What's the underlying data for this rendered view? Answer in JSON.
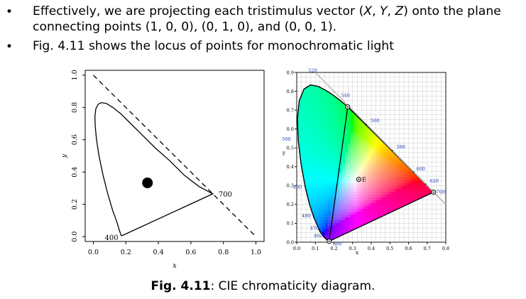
{
  "bullets": [
    {
      "marker": "•",
      "parts": [
        {
          "t": "Effectively, we are projecting each tristimulus vector ("
        },
        {
          "t": "X",
          "i": true
        },
        {
          "t": ", "
        },
        {
          "t": "Y",
          "i": true
        },
        {
          "t": ", "
        },
        {
          "t": "Z",
          "i": true
        },
        {
          "t": ") onto the plane connecting points (1, 0, 0), (0, 1, 0), and (0, 0, 1)."
        }
      ]
    },
    {
      "marker": "•",
      "parts": [
        {
          "t": "Fig. 4.11 shows the locus of points for monochromatic light"
        }
      ]
    }
  ],
  "caption": {
    "label": "Fig. 4.11",
    "text": ": CIE chromaticity diagram."
  },
  "chart_data": [
    {
      "type": "line",
      "title": "",
      "xlabel": "x",
      "ylabel": "y",
      "xlim": [
        -0.05,
        1.05
      ],
      "ylim": [
        -0.03,
        1.03
      ],
      "x_ticks": [
        "0.0",
        "0.2",
        "0.4",
        "0.6",
        "0.8",
        "1.0"
      ],
      "y_ticks": [
        "0.0",
        "0.2",
        "0.4",
        "0.6",
        "0.8",
        "1.0"
      ],
      "grid": false,
      "series": [
        {
          "style": "solid",
          "x": [
            0.175,
            0.17,
            0.16,
            0.145,
            0.12,
            0.09,
            0.06,
            0.035,
            0.02,
            0.012,
            0.01,
            0.015,
            0.03,
            0.05,
            0.08,
            0.12,
            0.17,
            0.23,
            0.3,
            0.38,
            0.47,
            0.56,
            0.65,
            0.735,
            0.175
          ],
          "y": [
            0.005,
            0.01,
            0.04,
            0.09,
            0.16,
            0.26,
            0.38,
            0.5,
            0.6,
            0.68,
            0.74,
            0.79,
            0.82,
            0.83,
            0.825,
            0.8,
            0.76,
            0.7,
            0.63,
            0.55,
            0.47,
            0.38,
            0.31,
            0.265,
            0.005
          ]
        },
        {
          "style": "dashed",
          "x": [
            0.0,
            1.0
          ],
          "y": [
            1.0,
            0.0
          ]
        }
      ],
      "markers": [
        {
          "x": 0.333,
          "y": 0.333
        }
      ],
      "annotations": [
        {
          "label": "400",
          "x": 0.175,
          "y": 0.005
        },
        {
          "label": "700",
          "x": 0.735,
          "y": 0.265
        }
      ]
    },
    {
      "type": "line",
      "title": "",
      "xlabel": "x",
      "ylabel": "y",
      "xlim": [
        0.0,
        0.8
      ],
      "ylim": [
        0.0,
        0.9
      ],
      "x_ticks": [
        "0.0",
        "0.1",
        "0.2",
        "0.3",
        "0.4",
        "0.5",
        "0.6",
        "0.7",
        "0.8"
      ],
      "y_ticks": [
        "0.0",
        "0.1",
        "0.2",
        "0.3",
        "0.4",
        "0.5",
        "0.6",
        "0.7",
        "0.8",
        "0.9"
      ],
      "grid": true,
      "series": [
        {
          "style": "spectral-locus",
          "x": [
            0.1741,
            0.1733,
            0.1714,
            0.1689,
            0.1644,
            0.1566,
            0.144,
            0.1241,
            0.0913,
            0.0687,
            0.0454,
            0.0235,
            0.0082,
            0.0039,
            0.0139,
            0.0389,
            0.0743,
            0.1142,
            0.1547,
            0.1929,
            0.2296,
            0.2658,
            0.3016,
            0.3373,
            0.3731,
            0.4087,
            0.4441,
            0.4788,
            0.5125,
            0.5448,
            0.5752,
            0.6029,
            0.627,
            0.6482,
            0.6658,
            0.6801,
            0.6915,
            0.7006,
            0.7079,
            0.714,
            0.719,
            0.723,
            0.726,
            0.7283,
            0.73,
            0.7311,
            0.732,
            0.7327,
            0.7334,
            0.734,
            0.7347
          ],
          "y": [
            0.005,
            0.0048,
            0.0051,
            0.0069,
            0.0109,
            0.0177,
            0.0297,
            0.0578,
            0.1327,
            0.2007,
            0.295,
            0.4127,
            0.5384,
            0.6548,
            0.7502,
            0.812,
            0.8338,
            0.8262,
            0.8059,
            0.7816,
            0.7543,
            0.7243,
            0.6923,
            0.6589,
            0.6245,
            0.5896,
            0.5547,
            0.5202,
            0.4866,
            0.4544,
            0.4242,
            0.3965,
            0.3725,
            0.3514,
            0.334,
            0.3197,
            0.3083,
            0.2993,
            0.292,
            0.2859,
            0.2809,
            0.277,
            0.274,
            0.2717,
            0.27,
            0.2689,
            0.268,
            0.2673,
            0.2666,
            0.266,
            0.2653
          ]
        },
        {
          "style": "solid-line",
          "x": [
            0.1741,
            0.2738
          ],
          "y": [
            0.005,
            0.7174
          ]
        },
        {
          "style": "triangle-edge",
          "x": [
            0.2738,
            0.7347
          ],
          "y": [
            0.7174,
            0.2653
          ]
        }
      ],
      "wavelength_labels": [
        {
          "label": "380",
          "x": 0.18,
          "y": 0.005
        },
        {
          "label": "460",
          "x": 0.144,
          "y": 0.0297
        },
        {
          "label": "470",
          "x": 0.1241,
          "y": 0.0578
        },
        {
          "label": "480",
          "x": 0.0913,
          "y": 0.1327
        },
        {
          "label": "490",
          "x": 0.0454,
          "y": 0.295
        },
        {
          "label": "500",
          "x": 0.0082,
          "y": 0.5384
        },
        {
          "label": "520",
          "x": 0.0743,
          "y": 0.8338
        },
        {
          "label": "540",
          "x": 0.2296,
          "y": 0.7543
        },
        {
          "label": "560",
          "x": 0.3731,
          "y": 0.6245
        },
        {
          "label": "580",
          "x": 0.5125,
          "y": 0.4866
        },
        {
          "label": "600",
          "x": 0.627,
          "y": 0.3725
        },
        {
          "label": "620",
          "x": 0.6915,
          "y": 0.3083
        },
        {
          "label": "700",
          "x": 0.7347,
          "y": 0.2653
        }
      ],
      "points": [
        {
          "label": "E",
          "x": 0.3333,
          "y": 0.3333
        },
        {
          "label": "",
          "x": 0.2738,
          "y": 0.7174
        },
        {
          "label": "",
          "x": 0.7347,
          "y": 0.2653
        },
        {
          "label": "",
          "x": 0.1741,
          "y": 0.005
        }
      ]
    }
  ]
}
